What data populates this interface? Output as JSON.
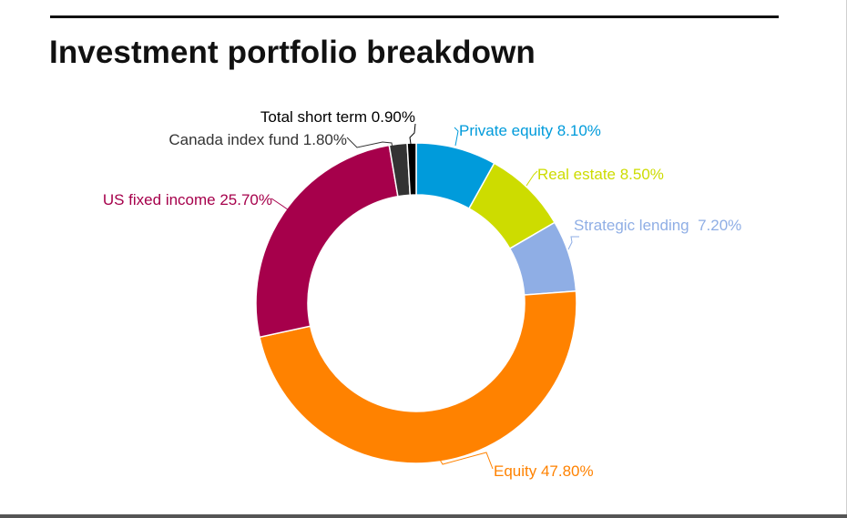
{
  "title": "Investment portfolio breakdown",
  "chart_data": {
    "type": "pie",
    "variant": "donut",
    "title": "Investment portfolio breakdown",
    "start_at": "top",
    "direction": "clockwise",
    "series": [
      {
        "label": "Private equity 8.10%",
        "value": 8.1,
        "color": "#009BDB"
      },
      {
        "label": "Real estate 8.50%",
        "value": 8.5,
        "color": "#CDDC00"
      },
      {
        "label": "Strategic lending  7.20%",
        "value": 7.2,
        "color": "#8FAEE5"
      },
      {
        "label": "Equity 47.80%",
        "value": 47.8,
        "color": "#FF8200"
      },
      {
        "label": "US fixed income 25.70%",
        "value": 25.7,
        "color": "#A6004B"
      },
      {
        "label": "Canada index fund 1.80%",
        "value": 1.8,
        "color": "#333333"
      },
      {
        "label": "Total short term 0.90%",
        "value": 0.9,
        "color": "#000000"
      }
    ]
  }
}
